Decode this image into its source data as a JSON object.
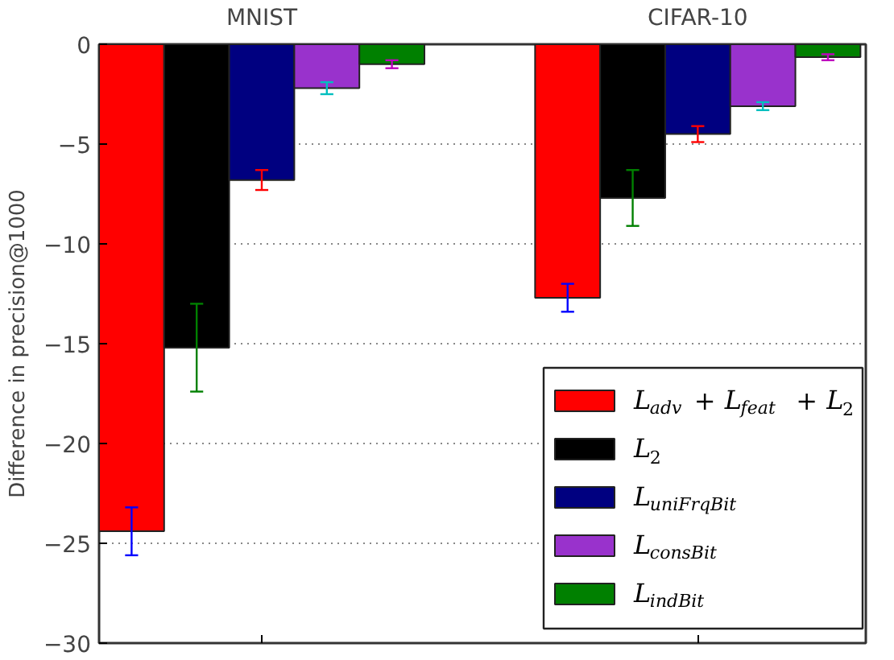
{
  "chart_data": {
    "type": "bar",
    "ylabel": "Difference in precision@1000",
    "categories": [
      "MNIST",
      "CIFAR-10"
    ],
    "series": [
      {
        "name": "L$_{adv}$ + L$_{feat}$ + L$_{2}$",
        "color": "#ff0000",
        "values": [
          -24.4,
          -12.7
        ],
        "errors": [
          1.2,
          0.7
        ]
      },
      {
        "name": "L$_{2}$",
        "color": "#000000",
        "values": [
          -15.2,
          -7.7
        ],
        "errors": [
          2.2,
          1.4
        ]
      },
      {
        "name": "L$_{uniFrqBit}$",
        "color": "#000080",
        "values": [
          -6.8,
          -4.5
        ],
        "errors": [
          0.5,
          0.4
        ]
      },
      {
        "name": "L$_{consBit}$",
        "color": "#9932cc",
        "values": [
          -2.2,
          -3.1
        ],
        "errors": [
          0.3,
          0.2
        ]
      },
      {
        "name": "L$_{indBit}$",
        "color": "#008000",
        "values": [
          -1.0,
          -0.65
        ],
        "errors": [
          0.2,
          0.15
        ]
      }
    ],
    "ylim": [
      -30,
      0
    ],
    "yticks": [
      {
        "value": -30,
        "label": "−30"
      },
      {
        "value": -25,
        "label": "−25"
      },
      {
        "value": -20,
        "label": "−20"
      },
      {
        "value": -15,
        "label": "−15"
      },
      {
        "value": -10,
        "label": "−10"
      },
      {
        "value": -5,
        "label": "−5"
      },
      0
    ],
    "grid": "y",
    "legend": "bottom right"
  }
}
